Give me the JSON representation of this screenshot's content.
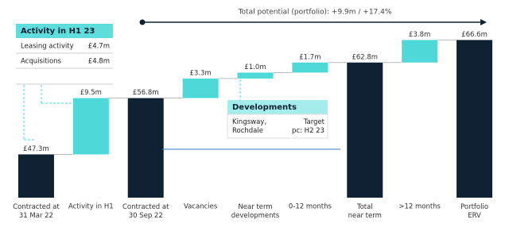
{
  "chart_data": {
    "type": "waterfall",
    "categories": [
      "Contracted at\n31 Mar 22",
      "Activity in H1",
      "Contracted at\n30 Sep 22",
      "Vacancies",
      "Near term\ndevelopments",
      "0-12 months",
      "Total\nnear term",
      ">12 months",
      "Portfolio\nERV"
    ],
    "values": [
      47.3,
      9.5,
      56.8,
      3.3,
      1.0,
      1.7,
      62.8,
      3.8,
      66.6
    ],
    "value_labels": [
      "£47.3m",
      "£9.5m",
      "£56.8m",
      "£3.3m",
      "£1.0m",
      "£1.7m",
      "£62.8m",
      "£3.8m",
      "£66.6m"
    ],
    "kinds": [
      "total",
      "increase",
      "total",
      "increase",
      "increase",
      "increase",
      "total",
      "increase",
      "total"
    ],
    "colors": {
      "total": "#0f2233",
      "increase": "#4fd8d8"
    },
    "ylim": [
      40,
      70
    ],
    "annotation": "Total potential (portfolio): +9.9m / +17.4%"
  },
  "activity_box": {
    "title": "Activity in H1 23",
    "rows": [
      [
        "Leasing activity",
        "£4.7m"
      ],
      [
        "Acquisitions",
        "£4.8m"
      ]
    ]
  },
  "developments_box": {
    "title": "Developments",
    "rows": [
      [
        "Kingsway,\nRochdale",
        "Target\npc: H2 23"
      ]
    ]
  }
}
